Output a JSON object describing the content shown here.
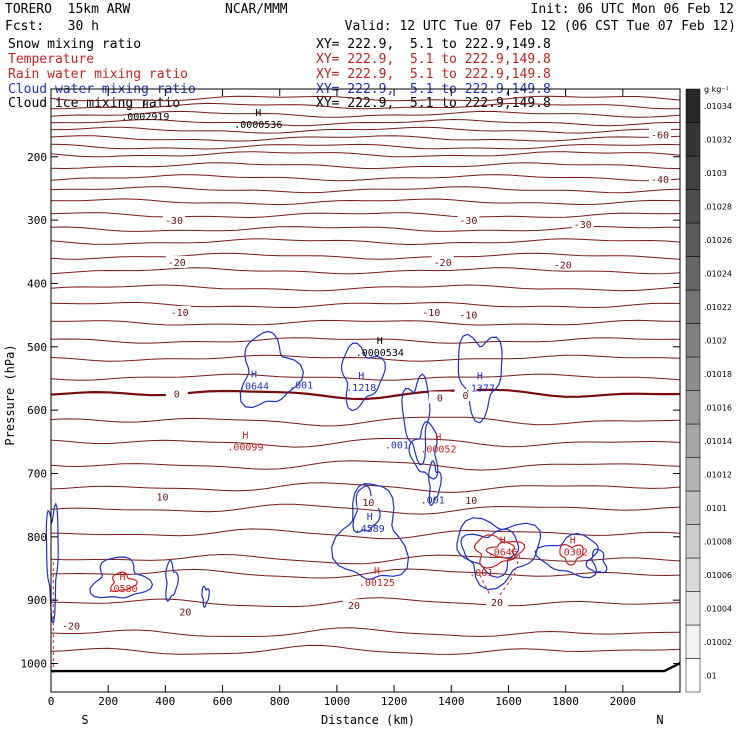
{
  "header": {
    "model": "TORERO  15km ARW",
    "center": "NCAR/MMM",
    "init": "Init: 06 UTC Mon 06 Feb 12",
    "fcst": "Fcst:   30 h",
    "valid": "Valid: 12 UTC Tue 07 Feb 12 (06 CST Tue 07 Feb 12)"
  },
  "fields": [
    {
      "name": "Snow mixing ratio",
      "xy": "XY= 222.9,  5.1 to 222.9,149.8",
      "color": "#000000"
    },
    {
      "name": "Temperature",
      "xy": "XY= 222.9,  5.1 to 222.9,149.8",
      "color": "#cc1f1f"
    },
    {
      "name": "Rain water mixing ratio",
      "xy": "XY= 222.9,  5.1 to 222.9,149.8",
      "color": "#cc1f1f"
    },
    {
      "name": "Cloud water mixing ratio",
      "xy": "XY= 222.9,  5.1 to 222.9,149.8",
      "color": "#1f2fc8"
    },
    {
      "name": "Cloud ice mixing ratio",
      "xy": "XY= 222.9,  5.1 to 222.9,149.8",
      "color": "#000000"
    }
  ],
  "chart_data": {
    "type": "contour",
    "title": "",
    "xlabel": "Distance (km)",
    "ylabel": "Pressure (hPa)",
    "x_ticks": [
      0,
      200,
      400,
      600,
      800,
      1000,
      1200,
      1400,
      1600,
      1800,
      2000
    ],
    "x_tick_labels": [
      "0",
      "200",
      "400",
      "600",
      "800",
      "1000",
      "1200",
      "1400",
      "1600",
      "1800",
      "2000"
    ],
    "y_ticks": [
      200,
      300,
      400,
      500,
      600,
      700,
      800,
      900,
      1000
    ],
    "y_tick_labels": [
      "200",
      "300",
      "400",
      "500",
      "600",
      "700",
      "800",
      "900",
      "1000"
    ],
    "xlim": [
      0,
      2200
    ],
    "ylim": [
      1045,
      93
    ],
    "end_labels": {
      "left": "S",
      "right": "N"
    },
    "colorbar": {
      "unit": "g kg⁻¹",
      "labels": [
        ".01",
        ".01002",
        ".01004",
        ".01006",
        ".01008",
        ".0101",
        ".01012",
        ".01014",
        ".01016",
        ".01018",
        ".0102",
        ".01022",
        ".01024",
        ".01026",
        ".01028",
        ".0103",
        ".01032",
        ".01034"
      ]
    },
    "temperature_labels": [
      {
        "text": "-60",
        "x": 2130,
        "p": 165
      },
      {
        "text": "-40",
        "x": 2130,
        "p": 235
      },
      {
        "text": "-30",
        "x": 430,
        "p": 300
      },
      {
        "text": "-30",
        "x": 1460,
        "p": 300
      },
      {
        "text": "-30",
        "x": 1860,
        "p": 306
      },
      {
        "text": "-20",
        "x": 440,
        "p": 366
      },
      {
        "text": "-20",
        "x": 1370,
        "p": 366
      },
      {
        "text": "-20",
        "x": 1790,
        "p": 370
      },
      {
        "text": "-10",
        "x": 450,
        "p": 445
      },
      {
        "text": "-10",
        "x": 1330,
        "p": 445
      },
      {
        "text": "-10",
        "x": 1460,
        "p": 449
      },
      {
        "text": "0",
        "x": 440,
        "p": 574
      },
      {
        "text": "0",
        "x": 1360,
        "p": 580
      },
      {
        "text": "0",
        "x": 1450,
        "p": 576
      },
      {
        "text": "10",
        "x": 390,
        "p": 736
      },
      {
        "text": "10",
        "x": 1110,
        "p": 745
      },
      {
        "text": "10",
        "x": 1470,
        "p": 742
      },
      {
        "text": "20",
        "x": 1560,
        "p": 903
      },
      {
        "text": "20",
        "x": 470,
        "p": 918
      },
      {
        "text": "20",
        "x": 1060,
        "p": 908
      },
      {
        "text": "-20",
        "x": 70,
        "p": 940
      }
    ],
    "maxima": [
      {
        "label": "H",
        "value": ".0002919",
        "x": 330,
        "p": 137,
        "color": "#000000"
      },
      {
        "label": "H",
        "value": ".0000536",
        "x": 725,
        "p": 150,
        "color": "#000000"
      },
      {
        "label": "H",
        "value": ".0000534",
        "x": 1150,
        "p": 510,
        "color": "#000000"
      },
      {
        "label": "H",
        "value": ".0644",
        "x": 710,
        "p": 563,
        "color": "#1f2fc8"
      },
      {
        "label": "",
        "value": ".001",
        "x": 875,
        "p": 561,
        "color": "#1f2fc8"
      },
      {
        "label": "H",
        "value": ".1218",
        "x": 1085,
        "p": 565,
        "color": "#1f2fc8"
      },
      {
        "label": "H",
        "value": ".1377",
        "x": 1500,
        "p": 566,
        "color": "#1f2fc8"
      },
      {
        "label": "H",
        "value": ".00099",
        "x": 680,
        "p": 659,
        "color": "#cc1f1f"
      },
      {
        "label": "",
        "value": ".001",
        "x": 1210,
        "p": 656,
        "color": "#1f2fc8"
      },
      {
        "label": "H",
        "value": ".00052",
        "x": 1355,
        "p": 662,
        "color": "#cc1f1f"
      },
      {
        "label": "",
        "value": ".001",
        "x": 1335,
        "p": 743,
        "color": "#1f2fc8"
      },
      {
        "label": "H",
        "value": ".4589",
        "x": 1115,
        "p": 788,
        "color": "#1f2fc8"
      },
      {
        "label": "H",
        "value": ".00125",
        "x": 1140,
        "p": 873,
        "color": "#cc1f1f"
      },
      {
        "label": "H",
        "value": ".0646",
        "x": 1580,
        "p": 825,
        "color": "#cc1f1f"
      },
      {
        "label": "H",
        "value": ".0302",
        "x": 1825,
        "p": 825,
        "color": "#cc1f1f"
      },
      {
        "label": "H",
        "value": ".0580",
        "x": 250,
        "p": 882,
        "color": "#cc1f1f"
      },
      {
        "label": "",
        "value": ".001",
        "x": 1505,
        "p": 857,
        "color": "#cc1f1f"
      }
    ]
  },
  "colors": {
    "temperature": "#7a1a1a",
    "freezing_line": "#7a0a0a",
    "cloud_water": "#1f2fc8",
    "rain_water": "#cc1f1f",
    "terrain": "#000000"
  }
}
